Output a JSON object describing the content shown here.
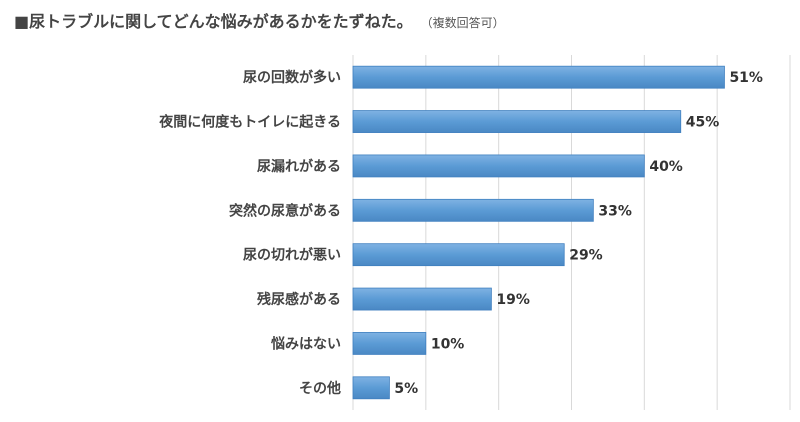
{
  "title": {
    "main": "■尿トラブルに関してどんな悩みがあるかをたずねた。",
    "sub": "（複数回答可）"
  },
  "chart_data": {
    "type": "bar",
    "orientation": "horizontal",
    "categories": [
      "尿の回数が多い",
      "夜間に何度もトイレに起きる",
      "尿漏れがある",
      "突然の尿意がある",
      "尿の切れが悪い",
      "残尿感がある",
      "悩みはない",
      "その他"
    ],
    "values": [
      51,
      45,
      40,
      33,
      29,
      19,
      10,
      5
    ],
    "value_labels": [
      "51%",
      "45%",
      "40%",
      "33%",
      "29%",
      "19%",
      "10%",
      "5%"
    ],
    "xlim": [
      0,
      60
    ],
    "grid": true,
    "bar_color": "#5b9bd5",
    "bar_edge_color": "#3f7fbf",
    "grid_color": "#d9d9d9"
  }
}
